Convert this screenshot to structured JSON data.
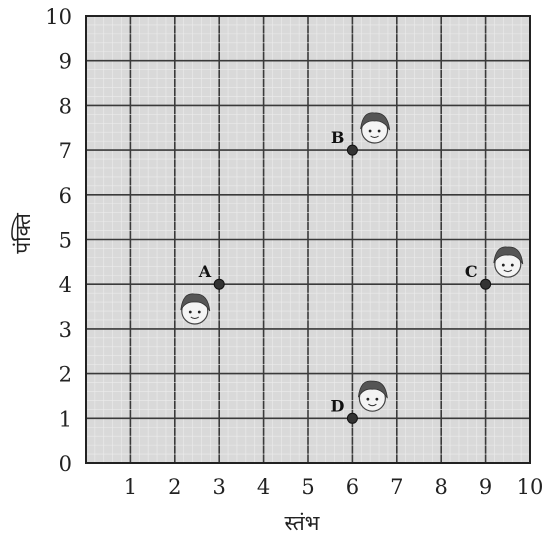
{
  "chart_data": {
    "type": "scatter",
    "xlabel": "स्तंभ",
    "ylabel": "पंक्ति",
    "xlim": [
      0,
      10
    ],
    "ylim": [
      0,
      10
    ],
    "x_ticks": [
      "1",
      "2",
      "3",
      "4",
      "5",
      "6",
      "7",
      "8",
      "9",
      "10"
    ],
    "y_ticks": [
      "0",
      "1",
      "2",
      "3",
      "4",
      "5",
      "6",
      "7",
      "8",
      "9",
      "10"
    ],
    "grid": true,
    "points": [
      {
        "label": "A",
        "x": 3,
        "y": 4
      },
      {
        "label": "B",
        "x": 6,
        "y": 7
      },
      {
        "label": "C",
        "x": 9,
        "y": 4
      },
      {
        "label": "D",
        "x": 6,
        "y": 1
      }
    ],
    "colors": {
      "grid": "#3a3a3a",
      "background": "#d9d9d9",
      "point": "#333333"
    }
  }
}
